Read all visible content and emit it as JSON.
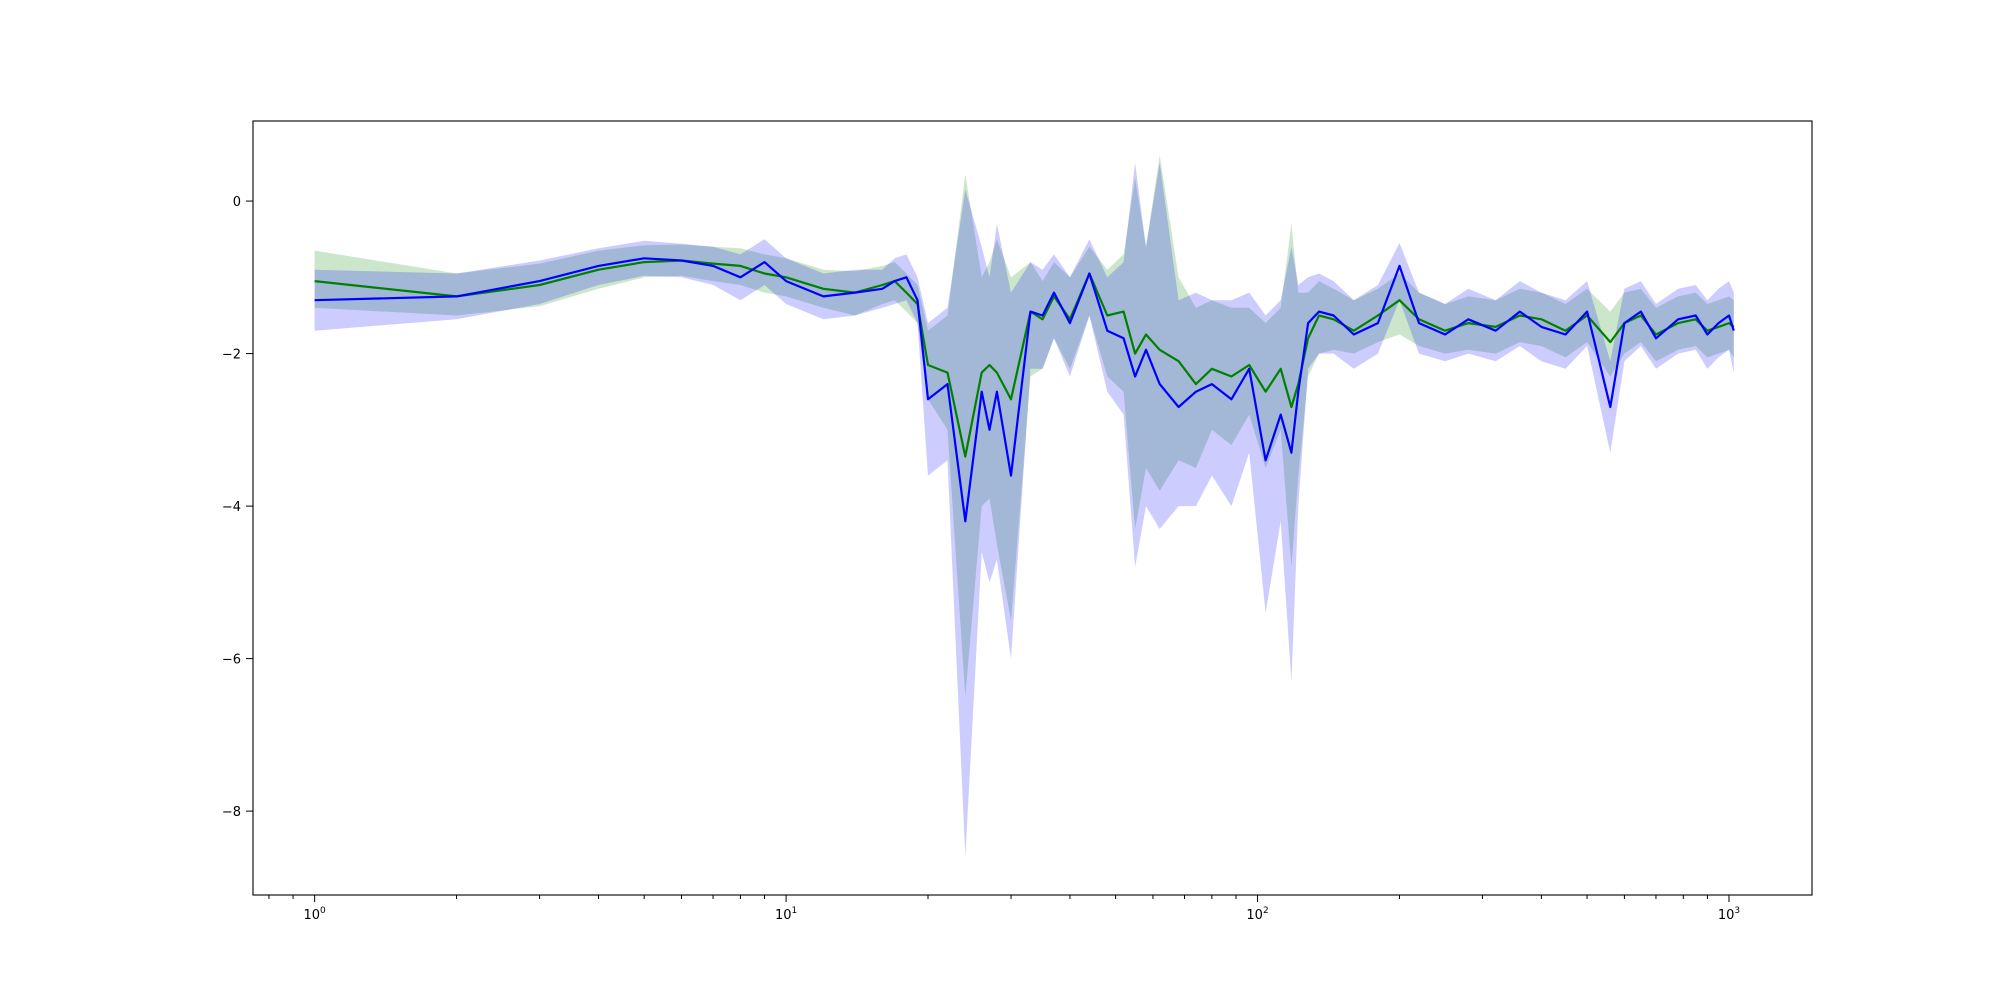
{
  "chart_data": {
    "type": "line",
    "title": "",
    "xlabel": "",
    "ylabel": "",
    "x_scale": "log",
    "xlim": [
      0.74,
      1500
    ],
    "ylim": [
      -9.1,
      1.05
    ],
    "grid": false,
    "legend": "none",
    "x_ticks": [
      {
        "value": 1,
        "base": "10",
        "exp": "0"
      },
      {
        "value": 10,
        "base": "10",
        "exp": "1"
      },
      {
        "value": 100,
        "base": "10",
        "exp": "2"
      },
      {
        "value": 1000,
        "base": "10",
        "exp": "3"
      }
    ],
    "y_ticks": [
      {
        "value": 0,
        "label": "0"
      },
      {
        "value": -2,
        "label": "−2"
      },
      {
        "value": -4,
        "label": "−4"
      },
      {
        "value": -6,
        "label": "−6"
      },
      {
        "value": -8,
        "label": "−8"
      }
    ],
    "x": [
      1,
      2,
      3,
      4,
      5,
      6,
      7,
      8,
      9,
      10,
      12,
      14,
      16,
      17,
      18,
      19,
      20,
      22,
      24,
      26,
      27,
      28,
      30,
      33,
      35,
      37,
      40,
      44,
      48,
      52,
      55,
      58,
      62,
      68,
      74,
      80,
      88,
      96,
      104,
      112,
      118,
      122,
      128,
      135,
      145,
      160,
      180,
      200,
      220,
      250,
      280,
      320,
      360,
      400,
      450,
      500,
      560,
      600,
      650,
      700,
      780,
      850,
      900,
      950,
      1000,
      1024
    ],
    "series": [
      {
        "color": "#008000",
        "band_color": "#008000",
        "values": [
          -1.05,
          -1.25,
          -1.1,
          -0.9,
          -0.8,
          -0.78,
          -0.82,
          -0.85,
          -0.95,
          -1.0,
          -1.15,
          -1.2,
          -1.1,
          -1.05,
          -1.2,
          -1.35,
          -2.15,
          -2.25,
          -3.35,
          -2.25,
          -2.15,
          -2.25,
          -2.6,
          -1.45,
          -1.55,
          -1.25,
          -1.55,
          -0.95,
          -1.5,
          -1.45,
          -2.0,
          -1.75,
          -1.95,
          -2.1,
          -2.4,
          -2.2,
          -2.3,
          -2.15,
          -2.5,
          -2.2,
          -2.7,
          -2.4,
          -1.8,
          -1.5,
          -1.55,
          -1.7,
          -1.5,
          -1.3,
          -1.55,
          -1.7,
          -1.6,
          -1.65,
          -1.5,
          -1.55,
          -1.7,
          -1.5,
          -1.85,
          -1.6,
          -1.5,
          -1.75,
          -1.6,
          -1.55,
          -1.7,
          -1.65,
          -1.6,
          -1.65
        ],
        "lower": [
          -1.4,
          -1.5,
          -1.38,
          -1.15,
          -1.0,
          -0.98,
          -1.05,
          -1.1,
          -1.2,
          -1.25,
          -1.4,
          -1.5,
          -1.35,
          -1.3,
          -1.45,
          -1.6,
          -2.6,
          -3.0,
          -6.5,
          -4.0,
          -3.9,
          -4.5,
          -5.5,
          -2.3,
          -2.2,
          -1.8,
          -2.2,
          -1.5,
          -2.3,
          -2.5,
          -4.3,
          -3.5,
          -3.8,
          -3.4,
          -3.5,
          -3.0,
          -3.2,
          -2.8,
          -3.5,
          -3.0,
          -4.8,
          -3.6,
          -2.3,
          -2.0,
          -1.95,
          -2.0,
          -1.85,
          -1.75,
          -1.9,
          -2.0,
          -1.95,
          -2.0,
          -1.85,
          -1.9,
          -2.05,
          -1.85,
          -2.3,
          -2.0,
          -1.85,
          -2.1,
          -1.95,
          -1.9,
          -2.05,
          -2.0,
          -1.95,
          -2.05
        ],
        "upper": [
          -0.65,
          -0.95,
          -0.82,
          -0.65,
          -0.58,
          -0.57,
          -0.6,
          -0.62,
          -0.7,
          -0.75,
          -0.9,
          -0.92,
          -0.85,
          -0.8,
          -0.95,
          -1.1,
          -1.7,
          -1.5,
          0.35,
          -1.0,
          -0.8,
          -0.5,
          -1.0,
          -0.8,
          -1.05,
          -0.8,
          -1.0,
          -0.6,
          -0.9,
          -0.7,
          0.3,
          -0.6,
          0.6,
          -1.0,
          -1.4,
          -1.3,
          -1.4,
          -1.4,
          -1.6,
          -1.4,
          -0.3,
          -1.2,
          -1.2,
          -1.05,
          -1.15,
          -1.3,
          -1.15,
          -0.95,
          -1.2,
          -1.35,
          -1.25,
          -1.3,
          -1.15,
          -1.2,
          -1.35,
          -1.15,
          -1.45,
          -1.2,
          -1.15,
          -1.4,
          -1.25,
          -1.2,
          -1.35,
          -1.3,
          -1.25,
          -1.3
        ]
      },
      {
        "color": "#0000ff",
        "band_color": "#0000ff",
        "values": [
          -1.3,
          -1.25,
          -1.05,
          -0.85,
          -0.75,
          -0.78,
          -0.85,
          -1.0,
          -0.8,
          -1.05,
          -1.25,
          -1.2,
          -1.15,
          -1.05,
          -1.0,
          -1.3,
          -2.6,
          -2.4,
          -4.2,
          -2.5,
          -3.0,
          -2.5,
          -3.6,
          -1.45,
          -1.5,
          -1.2,
          -1.6,
          -0.95,
          -1.7,
          -1.8,
          -2.3,
          -1.95,
          -2.4,
          -2.7,
          -2.5,
          -2.4,
          -2.6,
          -2.2,
          -3.4,
          -2.8,
          -3.3,
          -2.5,
          -1.6,
          -1.45,
          -1.5,
          -1.75,
          -1.6,
          -0.85,
          -1.6,
          -1.75,
          -1.55,
          -1.7,
          -1.45,
          -1.65,
          -1.75,
          -1.45,
          -2.7,
          -1.6,
          -1.45,
          -1.8,
          -1.55,
          -1.5,
          -1.75,
          -1.6,
          -1.5,
          -1.7
        ],
        "lower": [
          -1.7,
          -1.55,
          -1.35,
          -1.1,
          -0.98,
          -1.0,
          -1.1,
          -1.3,
          -1.1,
          -1.35,
          -1.55,
          -1.5,
          -1.4,
          -1.35,
          -1.3,
          -1.6,
          -3.6,
          -3.4,
          -8.6,
          -4.6,
          -5.0,
          -4.7,
          -6.0,
          -2.2,
          -2.2,
          -1.8,
          -2.3,
          -1.5,
          -2.5,
          -2.8,
          -4.8,
          -4.0,
          -4.3,
          -4.0,
          -4.0,
          -3.6,
          -4.0,
          -3.3,
          -5.4,
          -4.2,
          -6.3,
          -4.0,
          -2.2,
          -2.0,
          -2.0,
          -2.2,
          -2.0,
          -1.3,
          -2.0,
          -2.1,
          -2.0,
          -2.1,
          -1.9,
          -2.1,
          -2.2,
          -1.9,
          -3.3,
          -2.1,
          -1.9,
          -2.2,
          -2.0,
          -1.95,
          -2.2,
          -2.05,
          -1.95,
          -2.25
        ],
        "upper": [
          -0.9,
          -0.95,
          -0.78,
          -0.62,
          -0.52,
          -0.56,
          -0.6,
          -0.7,
          -0.5,
          -0.75,
          -0.95,
          -0.9,
          -0.9,
          -0.75,
          -0.7,
          -1.0,
          -1.6,
          -1.4,
          0.15,
          -0.6,
          -1.0,
          -0.3,
          -1.2,
          -0.8,
          -0.9,
          -0.7,
          -1.0,
          -0.5,
          -1.0,
          -0.8,
          0.5,
          -0.6,
          0.5,
          -1.3,
          -1.2,
          -1.3,
          -1.3,
          -1.2,
          -1.5,
          -1.3,
          -0.6,
          -1.1,
          -1.0,
          -0.95,
          -1.05,
          -1.3,
          -1.1,
          -0.55,
          -1.2,
          -1.35,
          -1.15,
          -1.3,
          -1.05,
          -1.2,
          -1.3,
          -1.05,
          -2.1,
          -1.15,
          -1.05,
          -1.35,
          -1.15,
          -1.1,
          -1.3,
          -1.15,
          -1.05,
          -1.2
        ]
      }
    ]
  }
}
